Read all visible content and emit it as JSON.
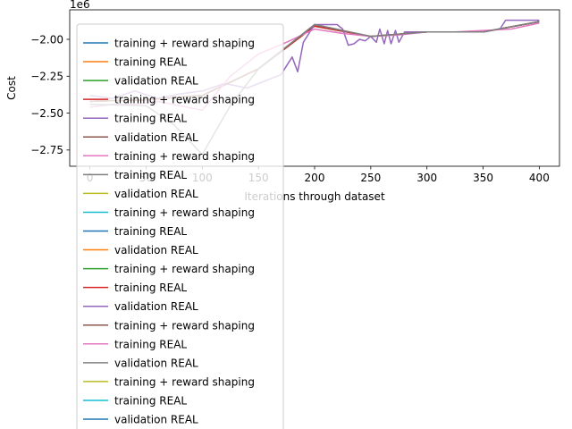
{
  "chart_data": {
    "type": "line",
    "title": "",
    "xlabel": "Iterations through dataset",
    "ylabel": "Cost",
    "y_offset_label": "1e6",
    "xlim": [
      -18,
      418
    ],
    "ylim": [
      -2.86,
      -1.8
    ],
    "x_ticks": [
      0,
      50,
      100,
      150,
      200,
      250,
      300,
      350,
      400
    ],
    "x_tick_labels": [
      "0",
      "50",
      "100",
      "150",
      "200",
      "250",
      "300",
      "350",
      "400"
    ],
    "y_ticks": [
      -2.75,
      -2.5,
      -2.25,
      -2.0
    ],
    "y_tick_labels": [
      "−2.75",
      "−2.50",
      "−2.25",
      "−2.00"
    ],
    "grid": false,
    "legend_position": "upper-left",
    "color_cycle": [
      "#1f77b4",
      "#ff7f0e",
      "#2ca02c",
      "#d62728",
      "#9467bd",
      "#8c564b",
      "#e377c2",
      "#7f7f7f",
      "#bcbd22",
      "#17becf"
    ],
    "series": [
      {
        "name": "training + reward shaping",
        "x": [
          0,
          50,
          100,
          150,
          200,
          250,
          300,
          350,
          400
        ],
        "values": [
          -2.42,
          -2.41,
          -2.38,
          -2.2,
          -1.91,
          -1.98,
          -1.95,
          -1.95,
          -1.88
        ]
      },
      {
        "name": "training REAL",
        "x": [
          0,
          50,
          100,
          150,
          200,
          250,
          300,
          350,
          400
        ],
        "values": [
          -2.42,
          -2.41,
          -2.38,
          -2.2,
          -1.91,
          -1.98,
          -1.95,
          -1.95,
          -1.88
        ]
      },
      {
        "name": "validation REAL",
        "x": [
          0,
          50,
          100,
          150,
          200,
          250,
          300,
          350,
          400
        ],
        "values": [
          -2.42,
          -2.41,
          -2.38,
          -2.2,
          -1.91,
          -1.98,
          -1.95,
          -1.95,
          -1.88
        ]
      },
      {
        "name": "training + reward shaping",
        "x": [
          0,
          50,
          100,
          150,
          200,
          250,
          300,
          350,
          400
        ],
        "values": [
          -2.42,
          -2.41,
          -2.38,
          -2.2,
          -1.91,
          -1.98,
          -1.95,
          -1.95,
          -1.88
        ]
      },
      {
        "name": "training REAL",
        "x": [
          0,
          20,
          40,
          60,
          80,
          100,
          120,
          140,
          160,
          170,
          175,
          180,
          185,
          190,
          200,
          210,
          220,
          225,
          230,
          235,
          240,
          245,
          250,
          255,
          258,
          262,
          265,
          268,
          272,
          275,
          280,
          300,
          350,
          365,
          370,
          400
        ],
        "values": [
          -2.38,
          -2.4,
          -2.35,
          -2.4,
          -2.37,
          -2.35,
          -2.3,
          -2.33,
          -2.27,
          -2.24,
          -2.18,
          -2.12,
          -2.22,
          -2.02,
          -1.9,
          -1.9,
          -1.9,
          -1.93,
          -2.04,
          -2.03,
          -2.0,
          -2.01,
          -1.98,
          -2.02,
          -1.93,
          -2.03,
          -1.94,
          -2.03,
          -1.94,
          -2.02,
          -1.95,
          -1.95,
          -1.95,
          -1.93,
          -1.87,
          -1.87
        ]
      },
      {
        "name": "validation REAL",
        "x": [
          0,
          50,
          100,
          150,
          200,
          250,
          300,
          350,
          400
        ],
        "values": [
          -2.42,
          -2.41,
          -2.38,
          -2.2,
          -1.9,
          -1.98,
          -1.95,
          -1.95,
          -1.88
        ]
      },
      {
        "name": "training + reward shaping",
        "x": [
          0,
          20,
          40,
          60,
          80,
          100,
          125,
          150,
          175,
          200,
          225,
          250,
          275,
          300,
          325,
          350,
          375,
          400
        ],
        "values": [
          -2.46,
          -2.44,
          -2.44,
          -2.42,
          -2.45,
          -2.48,
          -2.25,
          -2.1,
          -2.02,
          -1.93,
          -1.96,
          -1.98,
          -1.97,
          -1.95,
          -1.95,
          -1.94,
          -1.93,
          -1.89
        ]
      },
      {
        "name": "training REAL",
        "x": [
          0,
          50,
          75,
          100,
          125,
          150,
          175,
          200,
          250,
          300,
          350,
          400
        ],
        "values": [
          -2.44,
          -2.45,
          -2.58,
          -2.78,
          -2.45,
          -2.2,
          -2.05,
          -1.9,
          -1.98,
          -1.95,
          -1.95,
          -1.88
        ]
      },
      {
        "name": "validation REAL",
        "x": [],
        "values": []
      },
      {
        "name": "training + reward shaping",
        "x": [],
        "values": []
      },
      {
        "name": "training REAL",
        "x": [],
        "values": []
      },
      {
        "name": "validation REAL",
        "x": [],
        "values": []
      },
      {
        "name": "training + reward shaping",
        "x": [],
        "values": []
      },
      {
        "name": "training REAL",
        "x": [],
        "values": []
      },
      {
        "name": "validation REAL",
        "x": [],
        "values": []
      },
      {
        "name": "training + reward shaping",
        "x": [],
        "values": []
      },
      {
        "name": "training REAL",
        "x": [],
        "values": []
      },
      {
        "name": "validation REAL",
        "x": [],
        "values": []
      },
      {
        "name": "training + reward shaping",
        "x": [],
        "values": []
      },
      {
        "name": "training REAL",
        "x": [],
        "values": []
      },
      {
        "name": "validation REAL",
        "x": [],
        "values": []
      }
    ]
  }
}
